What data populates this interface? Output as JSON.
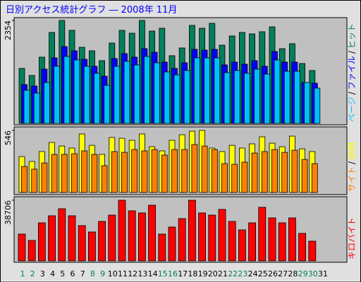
{
  "title": "日別アクセス統計グラフ ― 2008年 11月",
  "categories": [
    "1",
    "2",
    "3",
    "4",
    "5",
    "6",
    "7",
    "8",
    "9",
    "10",
    "11",
    "12",
    "13",
    "14",
    "15",
    "16",
    "17",
    "18",
    "19",
    "20",
    "21",
    "22",
    "23",
    "24",
    "25",
    "26",
    "27",
    "28",
    "29",
    "30",
    "31"
  ],
  "category_colors": [
    "#00805c",
    "#00805c",
    "#000000",
    "#000000",
    "#000000",
    "#000000",
    "#000000",
    "#00805c",
    "#00805c",
    "#000000",
    "#000000",
    "#000000",
    "#000000",
    "#000000",
    "#00805c",
    "#00805c",
    "#000000",
    "#000000",
    "#000000",
    "#000000",
    "#000000",
    "#00805c",
    "#00805c",
    "#000000",
    "#000000",
    "#000000",
    "#000000",
    "#000000",
    "#00805c",
    "#00805c",
    "#000000"
  ],
  "legend_separator": "/",
  "chart_data": [
    {
      "type": "bar",
      "ylim": [
        0,
        2354
      ],
      "yticks": [
        2354
      ],
      "series": [
        {
          "name": "ヒット",
          "color": "#00805c",
          "values": [
            1257,
            1096,
            1515,
            2080,
            2354,
            2128,
            1741,
            1660,
            1435,
            1838,
            2128,
            2063,
            2354,
            2112,
            2176,
            1548,
            1725,
            2241,
            2176,
            2289,
            1789,
            1999,
            2080,
            2047,
            2096,
            2208,
            1709,
            1822,
            1370,
            1209,
            null
          ]
        },
        {
          "name": "ファイル",
          "color": "#0000ff",
          "values": [
            887,
            854,
            1241,
            1499,
            1757,
            1660,
            1467,
            1306,
            1080,
            1483,
            1596,
            1515,
            1709,
            1628,
            1402,
            1257,
            1386,
            1693,
            1676,
            1693,
            1338,
            1402,
            1354,
            1435,
            1306,
            1644,
            1402,
            1402,
            935,
            919,
            null
          ]
        },
        {
          "name": "ページ",
          "color": "#00c0ff",
          "values": [
            758,
            693,
            935,
            1306,
            1531,
            1451,
            1306,
            1145,
            870,
            1306,
            1419,
            1338,
            1531,
            1386,
            1177,
            1112,
            1209,
            1499,
            1499,
            1499,
            1161,
            1209,
            1145,
            1241,
            1128,
            1451,
            1193,
            1193,
            935,
            806,
            null
          ]
        }
      ]
    },
    {
      "type": "bar",
      "ylim": [
        0,
        546
      ],
      "yticks": [
        546
      ],
      "series": [
        {
          "name": "訪問",
          "color": "#ffff00",
          "values": [
            316,
            273,
            360,
            440,
            409,
            391,
            515,
            415,
            335,
            484,
            477,
            459,
            515,
            403,
            366,
            459,
            508,
            539,
            546,
            391,
            360,
            415,
            391,
            428,
            490,
            434,
            403,
            496,
            384,
            360,
            null
          ]
        },
        {
          "name": "サイト",
          "color": "#ff8000",
          "values": [
            229,
            205,
            260,
            335,
            335,
            341,
            366,
            335,
            236,
            360,
            353,
            378,
            366,
            378,
            329,
            378,
            378,
            422,
            409,
            378,
            254,
            248,
            267,
            347,
            360,
            378,
            353,
            372,
            291,
            254,
            null
          ]
        }
      ]
    },
    {
      "type": "bar",
      "ylim": [
        0,
        38706
      ],
      "yticks": [
        38706
      ],
      "series": [
        {
          "name": "キロバイト",
          "color": "#ff0000",
          "values": [
            17100,
            13050,
            24300,
            28800,
            33300,
            28800,
            22500,
            18450,
            25200,
            29250,
            38706,
            31950,
            30600,
            35550,
            17100,
            21600,
            27000,
            38700,
            30600,
            29250,
            32850,
            25200,
            19800,
            24300,
            34200,
            27450,
            24300,
            27450,
            17550,
            12600,
            null
          ]
        }
      ]
    }
  ]
}
